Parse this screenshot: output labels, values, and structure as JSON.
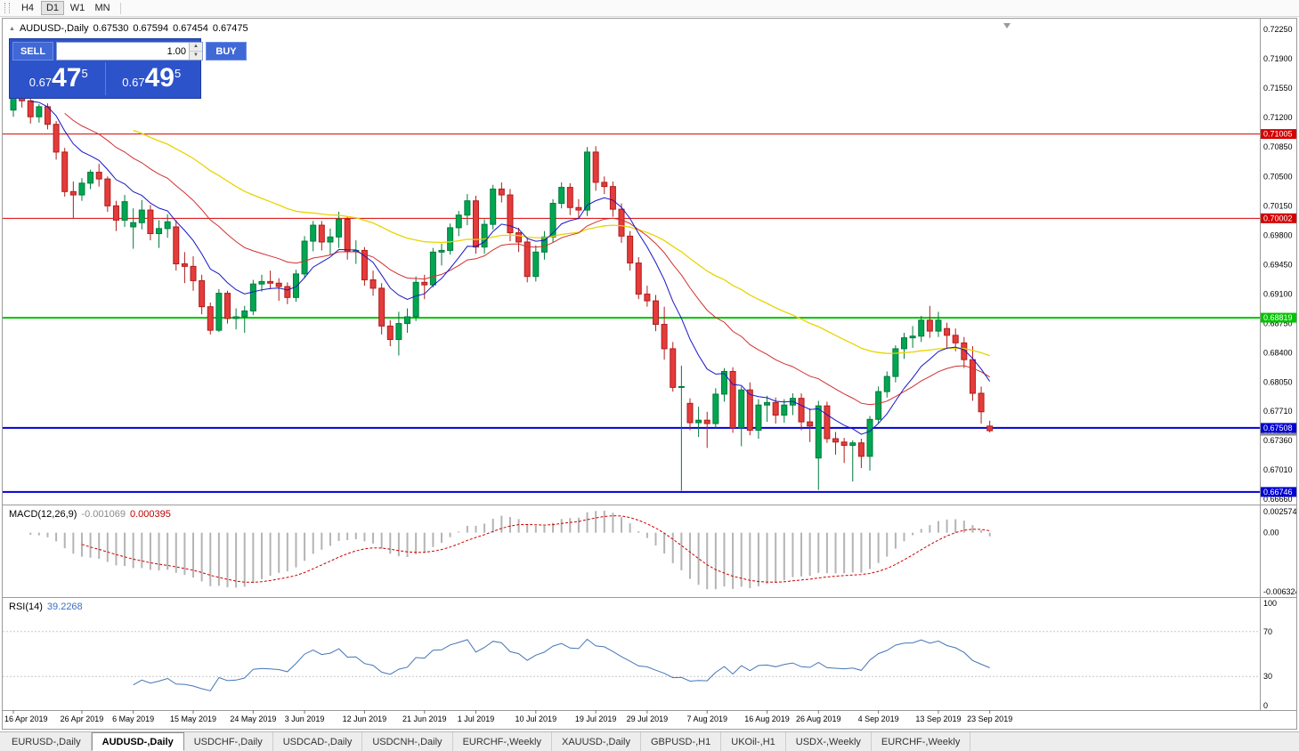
{
  "toolbar": {
    "timeframes": [
      {
        "label": "H4",
        "active": false
      },
      {
        "label": "D1",
        "active": true
      },
      {
        "label": "W1",
        "active": false
      },
      {
        "label": "MN",
        "active": false
      }
    ]
  },
  "icons": {
    "collapse": "▲",
    "spin_up": "▲",
    "spin_down": "▼"
  },
  "chart": {
    "title": {
      "symbol": "AUDUSD-,Daily",
      "open": "0.67530",
      "high": "0.67594",
      "low": "0.67454",
      "close": "0.67475"
    },
    "one_click": {
      "sell_label": "SELL",
      "buy_label": "BUY",
      "volume": "1.00",
      "sell_prefix": "0.67",
      "sell_big": "47",
      "sell_sup": "5",
      "buy_prefix": "0.67",
      "buy_big": "49",
      "buy_sup": "5"
    },
    "price_axis": [
      "0.72250",
      "0.71900",
      "0.71550",
      "0.71200",
      "0.70850",
      "0.70500",
      "0.70150",
      "0.69800",
      "0.69450",
      "0.69100",
      "0.68750",
      "0.68400",
      "0.68050",
      "0.67710",
      "0.67360",
      "0.67010",
      "0.66660"
    ],
    "h_lines": [
      {
        "price": 0.71005,
        "label": "0.71005",
        "color": "#d40000",
        "width": 1
      },
      {
        "price": 0.70002,
        "label": "0.70002",
        "color": "#d40000",
        "width": 1
      },
      {
        "price": 0.68819,
        "label": "0.68819",
        "color": "#00c400",
        "width": 2
      },
      {
        "price": 0.67508,
        "label": "0.67508",
        "color": "#0000d4",
        "width": 2
      },
      {
        "price": 0.66746,
        "label": "0.66746",
        "color": "#0000d4",
        "width": 2
      }
    ],
    "bid_tag": {
      "price": 0.67475,
      "label": "0.67475",
      "color": "#8a8a8a"
    },
    "colors": {
      "up": "#00a651",
      "up_border": "#007a3c",
      "down": "#e43b3b",
      "down_border": "#b01d1d",
      "ma_fast": "#1616c8",
      "ma_mid": "#d22f2f",
      "ma_slow": "#e8d400"
    },
    "x_labels": [
      {
        "index": 0,
        "label": "16 Apr 2019"
      },
      {
        "index": 8,
        "label": "26 Apr 2019"
      },
      {
        "index": 14,
        "label": "6 May 2019"
      },
      {
        "index": 21,
        "label": "15 May 2019"
      },
      {
        "index": 28,
        "label": "24 May 2019"
      },
      {
        "index": 34,
        "label": "3 Jun 2019"
      },
      {
        "index": 41,
        "label": "12 Jun 2019"
      },
      {
        "index": 48,
        "label": "21 Jun 2019"
      },
      {
        "index": 54,
        "label": "1 Jul 2019"
      },
      {
        "index": 61,
        "label": "10 Jul 2019"
      },
      {
        "index": 68,
        "label": "19 Jul 2019"
      },
      {
        "index": 74,
        "label": "29 Jul 2019"
      },
      {
        "index": 81,
        "label": "7 Aug 2019"
      },
      {
        "index": 88,
        "label": "16 Aug 2019"
      },
      {
        "index": 94,
        "label": "26 Aug 2019"
      },
      {
        "index": 101,
        "label": "4 Sep 2019"
      },
      {
        "index": 108,
        "label": "13 Sep 2019"
      },
      {
        "index": 114,
        "label": "23 Sep 2019"
      }
    ],
    "candles": [
      [
        0.7129,
        0.7148,
        0.7121,
        0.7145
      ],
      [
        0.7145,
        0.715,
        0.7132,
        0.714
      ],
      [
        0.714,
        0.7144,
        0.7113,
        0.7121
      ],
      [
        0.7121,
        0.7136,
        0.7114,
        0.7133
      ],
      [
        0.7133,
        0.7137,
        0.7106,
        0.7112
      ],
      [
        0.7112,
        0.7116,
        0.707,
        0.7079
      ],
      [
        0.7079,
        0.7084,
        0.7026,
        0.7032
      ],
      [
        0.7032,
        0.7044,
        0.7,
        0.7028
      ],
      [
        0.7028,
        0.7048,
        0.7021,
        0.7042
      ],
      [
        0.7042,
        0.7058,
        0.7035,
        0.7055
      ],
      [
        0.7055,
        0.7065,
        0.7038,
        0.7047
      ],
      [
        0.7047,
        0.705,
        0.7008,
        0.7015
      ],
      [
        0.7015,
        0.7021,
        0.6985,
        0.6998
      ],
      [
        0.6998,
        0.7028,
        0.699,
        0.702
      ],
      [
        0.699,
        0.7012,
        0.6964,
        0.6995
      ],
      [
        0.6995,
        0.7022,
        0.6987,
        0.701
      ],
      [
        0.701,
        0.7016,
        0.6974,
        0.6982
      ],
      [
        0.6982,
        0.6998,
        0.6965,
        0.6988
      ],
      [
        0.6988,
        0.7005,
        0.6977,
        0.6996
      ],
      [
        0.699,
        0.6998,
        0.6938,
        0.6946
      ],
      [
        0.6946,
        0.696,
        0.6923,
        0.6943
      ],
      [
        0.6943,
        0.6955,
        0.6914,
        0.6926
      ],
      [
        0.6926,
        0.6933,
        0.6886,
        0.6895
      ],
      [
        0.6895,
        0.69,
        0.6862,
        0.6867
      ],
      [
        0.6867,
        0.6916,
        0.6865,
        0.6911
      ],
      [
        0.6911,
        0.6914,
        0.6875,
        0.6881
      ],
      [
        0.6881,
        0.6893,
        0.6868,
        0.6883
      ],
      [
        0.6883,
        0.6896,
        0.6864,
        0.689
      ],
      [
        0.689,
        0.6927,
        0.6885,
        0.6922
      ],
      [
        0.6922,
        0.6933,
        0.6913,
        0.6925
      ],
      [
        0.6925,
        0.6938,
        0.6916,
        0.6923
      ],
      [
        0.6923,
        0.6929,
        0.6902,
        0.6919
      ],
      [
        0.6919,
        0.6924,
        0.6898,
        0.6906
      ],
      [
        0.6906,
        0.6939,
        0.6901,
        0.6934
      ],
      [
        0.6934,
        0.6979,
        0.6929,
        0.6973
      ],
      [
        0.6973,
        0.6997,
        0.6961,
        0.6992
      ],
      [
        0.6992,
        0.6997,
        0.6962,
        0.6972
      ],
      [
        0.6972,
        0.6988,
        0.6957,
        0.6978
      ],
      [
        0.6978,
        0.7008,
        0.6965,
        0.6999
      ],
      [
        0.6999,
        0.7002,
        0.6951,
        0.6961
      ],
      [
        0.6961,
        0.6974,
        0.6946,
        0.6962
      ],
      [
        0.6962,
        0.6966,
        0.692,
        0.6927
      ],
      [
        0.6927,
        0.6938,
        0.6908,
        0.6917
      ],
      [
        0.6917,
        0.6923,
        0.6862,
        0.6872
      ],
      [
        0.6872,
        0.6879,
        0.6848,
        0.6856
      ],
      [
        0.6856,
        0.6889,
        0.6837,
        0.6875
      ],
      [
        0.6875,
        0.6893,
        0.6864,
        0.6883
      ],
      [
        0.6883,
        0.6931,
        0.6878,
        0.6924
      ],
      [
        0.6924,
        0.6933,
        0.6904,
        0.6921
      ],
      [
        0.6921,
        0.6965,
        0.6918,
        0.696
      ],
      [
        0.696,
        0.697,
        0.6944,
        0.6962
      ],
      [
        0.6962,
        0.6994,
        0.6957,
        0.6989
      ],
      [
        0.6989,
        0.7009,
        0.6979,
        0.7004
      ],
      [
        0.7004,
        0.7029,
        0.6992,
        0.7021
      ],
      [
        0.7021,
        0.7027,
        0.6958,
        0.6966
      ],
      [
        0.6966,
        0.6999,
        0.6958,
        0.6993
      ],
      [
        0.6993,
        0.704,
        0.6987,
        0.7035
      ],
      [
        0.7035,
        0.7043,
        0.7019,
        0.7028
      ],
      [
        0.7028,
        0.7035,
        0.6973,
        0.6983
      ],
      [
        0.6983,
        0.6989,
        0.696,
        0.6972
      ],
      [
        0.6972,
        0.6978,
        0.6924,
        0.6931
      ],
      [
        0.6931,
        0.6968,
        0.6925,
        0.696
      ],
      [
        0.696,
        0.6985,
        0.6951,
        0.6978
      ],
      [
        0.6978,
        0.7023,
        0.6971,
        0.7018
      ],
      [
        0.7018,
        0.7043,
        0.7012,
        0.7037
      ],
      [
        0.7037,
        0.7042,
        0.7004,
        0.7013
      ],
      [
        0.7013,
        0.7023,
        0.6999,
        0.701
      ],
      [
        0.701,
        0.7085,
        0.7003,
        0.7079
      ],
      [
        0.7079,
        0.7086,
        0.7033,
        0.7043
      ],
      [
        0.7043,
        0.705,
        0.7029,
        0.7038
      ],
      [
        0.7038,
        0.7044,
        0.7002,
        0.7011
      ],
      [
        0.7011,
        0.7018,
        0.6971,
        0.6979
      ],
      [
        0.6979,
        0.6985,
        0.6938,
        0.6947
      ],
      [
        0.6947,
        0.6954,
        0.6904,
        0.691
      ],
      [
        0.691,
        0.692,
        0.6895,
        0.6902
      ],
      [
        0.6902,
        0.6909,
        0.6866,
        0.6874
      ],
      [
        0.6874,
        0.6895,
        0.6832,
        0.6845
      ],
      [
        0.6845,
        0.6853,
        0.6794,
        0.6799
      ],
      [
        0.6799,
        0.6825,
        0.6676,
        0.68
      ],
      [
        0.678,
        0.6786,
        0.6748,
        0.6757
      ],
      [
        0.6757,
        0.6776,
        0.674,
        0.676
      ],
      [
        0.676,
        0.677,
        0.6727,
        0.6756
      ],
      [
        0.6756,
        0.6798,
        0.6751,
        0.6791
      ],
      [
        0.6791,
        0.6822,
        0.6782,
        0.6818
      ],
      [
        0.6818,
        0.6823,
        0.6745,
        0.6751
      ],
      [
        0.6751,
        0.68,
        0.6729,
        0.6796
      ],
      [
        0.6796,
        0.6805,
        0.6742,
        0.6748
      ],
      [
        0.6748,
        0.6785,
        0.6738,
        0.6778
      ],
      [
        0.6778,
        0.6789,
        0.6758,
        0.6781
      ],
      [
        0.6781,
        0.6787,
        0.6756,
        0.6766
      ],
      [
        0.6766,
        0.6785,
        0.6757,
        0.6778
      ],
      [
        0.6778,
        0.6792,
        0.6766,
        0.6786
      ],
      [
        0.6786,
        0.6792,
        0.6748,
        0.6758
      ],
      [
        0.6758,
        0.6774,
        0.6734,
        0.6753
      ],
      [
        0.6715,
        0.6783,
        0.6677,
        0.6777
      ],
      [
        0.6777,
        0.6782,
        0.6733,
        0.6738
      ],
      [
        0.6738,
        0.6746,
        0.6719,
        0.6734
      ],
      [
        0.6734,
        0.6739,
        0.6709,
        0.673
      ],
      [
        0.673,
        0.6736,
        0.6687,
        0.6733
      ],
      [
        0.6733,
        0.6738,
        0.6703,
        0.6717
      ],
      [
        0.6717,
        0.6765,
        0.67,
        0.6761
      ],
      [
        0.6761,
        0.68,
        0.6756,
        0.6794
      ],
      [
        0.6794,
        0.6818,
        0.6787,
        0.6812
      ],
      [
        0.6812,
        0.6849,
        0.6805,
        0.6845
      ],
      [
        0.6845,
        0.6864,
        0.6833,
        0.6858
      ],
      [
        0.6858,
        0.6872,
        0.6846,
        0.686
      ],
      [
        0.686,
        0.6884,
        0.6853,
        0.6879
      ],
      [
        0.6879,
        0.6896,
        0.6858,
        0.6866
      ],
      [
        0.6866,
        0.6889,
        0.6859,
        0.6879
      ],
      [
        0.6869,
        0.6876,
        0.6845,
        0.6861
      ],
      [
        0.6861,
        0.6869,
        0.6842,
        0.6852
      ],
      [
        0.6852,
        0.6859,
        0.6822,
        0.6832
      ],
      [
        0.6832,
        0.6848,
        0.6783,
        0.6792
      ],
      [
        0.6792,
        0.68,
        0.6756,
        0.677
      ],
      [
        0.6753,
        0.67594,
        0.67454,
        0.67475
      ]
    ]
  },
  "macd": {
    "label": "MACD(12,26,9)",
    "value_macd": "-0.001069",
    "value_signal": "0.000395",
    "params": {
      "fast": 12,
      "slow": 26,
      "signal": 9
    },
    "axis": {
      "top": "0.0025740",
      "zero": "0.00",
      "bottom": "-0.0063240"
    }
  },
  "rsi": {
    "label": "RSI(14)",
    "value": "39.2268",
    "period": 14,
    "levels": [
      100,
      70,
      30,
      0
    ]
  },
  "tabs": [
    {
      "label": "EURUSD-,Daily",
      "active": false
    },
    {
      "label": "AUDUSD-,Daily",
      "active": true
    },
    {
      "label": "USDCHF-,Daily",
      "active": false
    },
    {
      "label": "USDCAD-,Daily",
      "active": false
    },
    {
      "label": "USDCNH-,Daily",
      "active": false
    },
    {
      "label": "EURCHF-,Weekly",
      "active": false
    },
    {
      "label": "XAUUSD-,Daily",
      "active": false
    },
    {
      "label": "GBPUSD-,H1",
      "active": false
    },
    {
      "label": "UKOil-,H1",
      "active": false
    },
    {
      "label": "USDX-,Weekly",
      "active": false
    },
    {
      "label": "EURCHF-,Weekly",
      "active": false
    }
  ]
}
